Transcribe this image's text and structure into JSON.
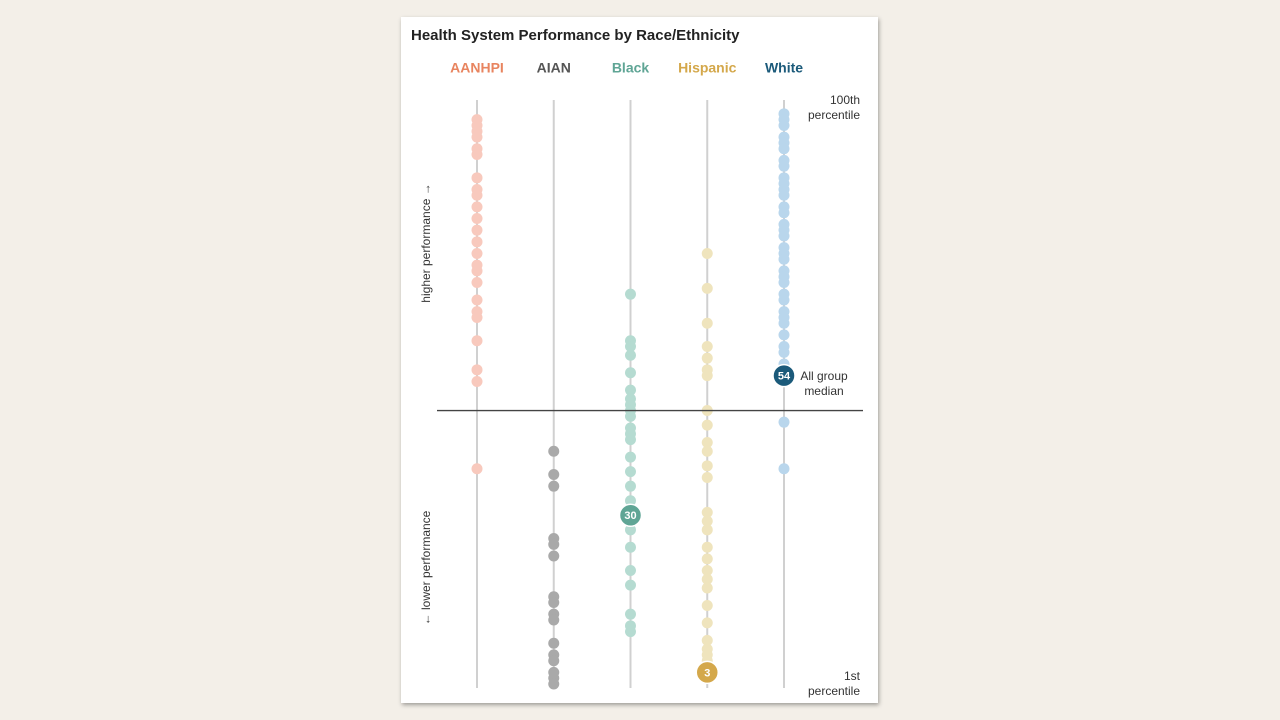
{
  "chart_data": {
    "type": "strip",
    "title": "Health System Performance by Race/Ethnicity",
    "y_label_high": "higher performance →",
    "y_label_low": "← lower performance",
    "ylim": [
      1,
      100
    ],
    "yticks": [
      {
        "value": 100,
        "label": "100th percentile"
      },
      {
        "value": 1,
        "label": "1st percentile"
      }
    ],
    "reference_line": 48,
    "series": [
      {
        "name": "AANHPI",
        "name_color": "#e8845f",
        "color": "#f8c9bd",
        "values": [
          98,
          97,
          96,
          95,
          93,
          92,
          88,
          86,
          85,
          83,
          81,
          79,
          77,
          75,
          73,
          72,
          70,
          67,
          65,
          64,
          60,
          55,
          53,
          38
        ]
      },
      {
        "name": "AIAN",
        "name_color": "#555555",
        "color": "#a9a9a9",
        "values": [
          41,
          37,
          35,
          26,
          25,
          23,
          16,
          15,
          13,
          12,
          8,
          6,
          5,
          3,
          2,
          1
        ]
      },
      {
        "name": "Black",
        "name_color": "#5fa595",
        "color": "#b5dbd1",
        "values": [
          68,
          60,
          59,
          57.5,
          54.5,
          51.5,
          50,
          49,
          48,
          47,
          45,
          44,
          43,
          40,
          37.5,
          35,
          32.5,
          27.5,
          24.5,
          20.5,
          18,
          13,
          11,
          10
        ],
        "highlight": 30,
        "highlight_color": "#5fa595"
      },
      {
        "name": "Hispanic",
        "name_color": "#d4a84b",
        "color": "#efe4bd",
        "values": [
          75,
          69,
          63,
          59,
          57,
          55,
          54,
          48,
          45.5,
          42.5,
          41,
          38.5,
          36.5,
          30.5,
          29,
          27.5,
          24.5,
          22.5,
          20.5,
          19,
          17.5,
          14.5,
          11.5,
          8.5,
          7,
          6,
          5
        ],
        "highlight": 3,
        "highlight_color": "#d4a84b"
      },
      {
        "name": "White",
        "name_color": "#1b5a7a",
        "color": "#b9d6ec",
        "values": [
          99,
          98,
          97,
          95,
          94,
          93,
          91,
          90,
          88,
          87,
          86,
          85,
          83,
          82,
          80,
          79,
          78,
          76,
          75,
          74,
          72,
          71,
          70,
          68,
          67,
          65,
          64,
          63,
          61,
          59,
          58,
          56,
          46,
          38
        ],
        "highlight": 54,
        "highlight_color": "#1b5a7a",
        "highlight_note": "All group median"
      }
    ]
  }
}
